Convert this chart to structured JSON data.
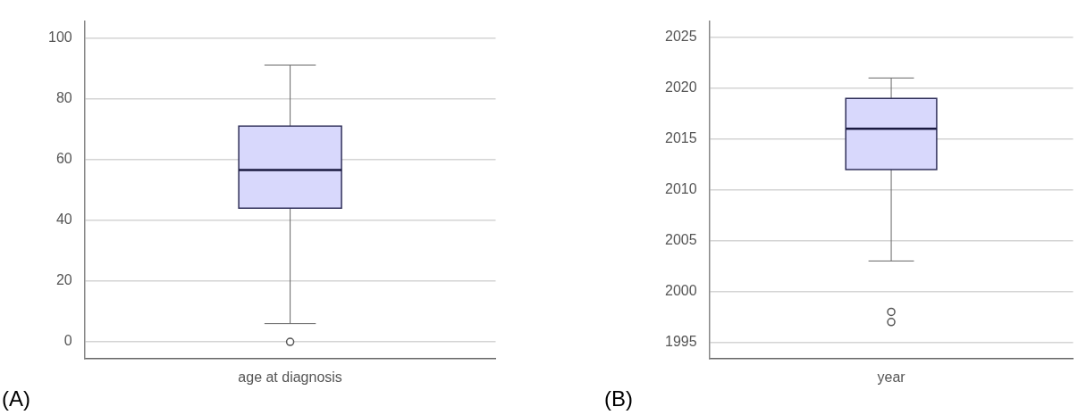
{
  "chart_data": [
    {
      "type": "box",
      "categories": [
        "age at diagnosis"
      ],
      "series": [
        {
          "color": "#d8d8fc",
          "boxes": [
            {
              "low": 6,
              "q1": 44,
              "median": 56.5,
              "q3": 71,
              "high": 91,
              "outliers": [
                0
              ]
            }
          ]
        }
      ],
      "ylim": [
        -5.5,
        105.5
      ],
      "yticks": [
        0,
        20,
        40,
        60,
        80,
        100
      ],
      "grid": "y",
      "legend": false,
      "annotations": [
        "(A)"
      ]
    },
    {
      "type": "box",
      "categories": [
        "year"
      ],
      "series": [
        {
          "color": "#d8d8fc",
          "boxes": [
            {
              "low": 2003,
              "q1": 2012,
              "median": 2016,
              "q3": 2019,
              "high": 2021,
              "outliers": [
                1998,
                1997
              ]
            }
          ]
        }
      ],
      "ylim": [
        1993.4,
        2026.6
      ],
      "yticks": [
        1995,
        2000,
        2005,
        2010,
        2015,
        2020,
        2025
      ],
      "grid": "y",
      "legend": false,
      "annotations": [
        "(B)"
      ]
    }
  ]
}
